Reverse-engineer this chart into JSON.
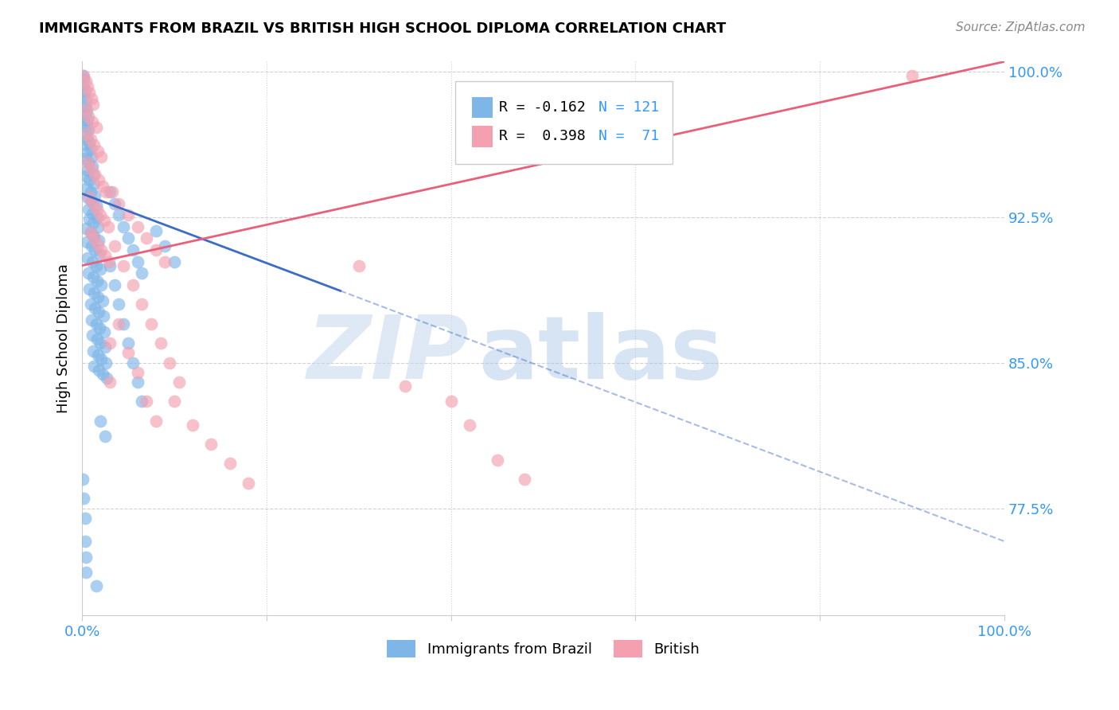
{
  "title": "IMMIGRANTS FROM BRAZIL VS BRITISH HIGH SCHOOL DIPLOMA CORRELATION CHART",
  "source": "Source: ZipAtlas.com",
  "ylabel": "High School Diploma",
  "watermark_zip": "ZIP",
  "watermark_atlas": "atlas",
  "xlim": [
    0.0,
    1.0
  ],
  "ylim": [
    0.72,
    1.005
  ],
  "yticks": [
    0.775,
    0.85,
    0.925,
    1.0
  ],
  "ytick_labels": [
    "77.5%",
    "85.0%",
    "92.5%",
    "100.0%"
  ],
  "xticks": [
    0.0,
    0.2,
    0.4,
    0.6,
    0.8,
    1.0
  ],
  "xtick_labels": [
    "0.0%",
    "",
    "",
    "",
    "",
    "100.0%"
  ],
  "legend_blue_label": "Immigrants from Brazil",
  "legend_pink_label": "British",
  "legend_R_blue": "R = -0.162",
  "legend_N_blue": "N = 121",
  "legend_R_pink": "R =  0.398",
  "legend_N_pink": "N =  71",
  "blue_color": "#7EB6E8",
  "pink_color": "#F4A0B0",
  "blue_line_color": "#3A6CC8",
  "pink_line_color": "#E8607A",
  "blue_scatter": [
    [
      0.001,
      0.998
    ],
    [
      0.002,
      0.996
    ],
    [
      0.001,
      0.993
    ],
    [
      0.003,
      0.99
    ],
    [
      0.002,
      0.988
    ],
    [
      0.004,
      0.985
    ],
    [
      0.003,
      0.982
    ],
    [
      0.005,
      0.98
    ],
    [
      0.004,
      0.978
    ],
    [
      0.006,
      0.975
    ],
    [
      0.002,
      0.975
    ],
    [
      0.005,
      0.972
    ],
    [
      0.007,
      0.97
    ],
    [
      0.003,
      0.968
    ],
    [
      0.006,
      0.965
    ],
    [
      0.008,
      0.963
    ],
    [
      0.004,
      0.962
    ],
    [
      0.009,
      0.96
    ],
    [
      0.005,
      0.958
    ],
    [
      0.01,
      0.956
    ],
    [
      0.003,
      0.955
    ],
    [
      0.007,
      0.953
    ],
    [
      0.011,
      0.951
    ],
    [
      0.006,
      0.949
    ],
    [
      0.012,
      0.947
    ],
    [
      0.004,
      0.946
    ],
    [
      0.008,
      0.944
    ],
    [
      0.013,
      0.942
    ],
    [
      0.005,
      0.94
    ],
    [
      0.009,
      0.938
    ],
    [
      0.014,
      0.936
    ],
    [
      0.006,
      0.935
    ],
    [
      0.01,
      0.933
    ],
    [
      0.015,
      0.931
    ],
    [
      0.007,
      0.929
    ],
    [
      0.011,
      0.927
    ],
    [
      0.016,
      0.925
    ],
    [
      0.008,
      0.924
    ],
    [
      0.012,
      0.922
    ],
    [
      0.017,
      0.92
    ],
    [
      0.004,
      0.919
    ],
    [
      0.009,
      0.917
    ],
    [
      0.013,
      0.915
    ],
    [
      0.018,
      0.913
    ],
    [
      0.005,
      0.912
    ],
    [
      0.01,
      0.91
    ],
    [
      0.014,
      0.908
    ],
    [
      0.019,
      0.906
    ],
    [
      0.006,
      0.904
    ],
    [
      0.011,
      0.902
    ],
    [
      0.015,
      0.9
    ],
    [
      0.02,
      0.898
    ],
    [
      0.007,
      0.896
    ],
    [
      0.012,
      0.894
    ],
    [
      0.016,
      0.892
    ],
    [
      0.021,
      0.89
    ],
    [
      0.008,
      0.888
    ],
    [
      0.013,
      0.886
    ],
    [
      0.017,
      0.884
    ],
    [
      0.022,
      0.882
    ],
    [
      0.009,
      0.88
    ],
    [
      0.014,
      0.878
    ],
    [
      0.018,
      0.876
    ],
    [
      0.023,
      0.874
    ],
    [
      0.01,
      0.872
    ],
    [
      0.015,
      0.87
    ],
    [
      0.019,
      0.868
    ],
    [
      0.024,
      0.866
    ],
    [
      0.011,
      0.864
    ],
    [
      0.016,
      0.862
    ],
    [
      0.02,
      0.86
    ],
    [
      0.025,
      0.858
    ],
    [
      0.012,
      0.856
    ],
    [
      0.017,
      0.854
    ],
    [
      0.021,
      0.852
    ],
    [
      0.026,
      0.85
    ],
    [
      0.013,
      0.848
    ],
    [
      0.018,
      0.846
    ],
    [
      0.022,
      0.844
    ],
    [
      0.027,
      0.842
    ],
    [
      0.03,
      0.938
    ],
    [
      0.035,
      0.932
    ],
    [
      0.04,
      0.926
    ],
    [
      0.045,
      0.92
    ],
    [
      0.05,
      0.914
    ],
    [
      0.055,
      0.908
    ],
    [
      0.06,
      0.902
    ],
    [
      0.065,
      0.896
    ],
    [
      0.03,
      0.9
    ],
    [
      0.035,
      0.89
    ],
    [
      0.04,
      0.88
    ],
    [
      0.045,
      0.87
    ],
    [
      0.05,
      0.86
    ],
    [
      0.055,
      0.85
    ],
    [
      0.06,
      0.84
    ],
    [
      0.065,
      0.83
    ],
    [
      0.08,
      0.918
    ],
    [
      0.09,
      0.91
    ],
    [
      0.1,
      0.902
    ],
    [
      0.001,
      0.79
    ],
    [
      0.002,
      0.78
    ],
    [
      0.003,
      0.77
    ],
    [
      0.003,
      0.758
    ],
    [
      0.004,
      0.75
    ],
    [
      0.004,
      0.742
    ],
    [
      0.015,
      0.735
    ],
    [
      0.02,
      0.82
    ],
    [
      0.025,
      0.812
    ]
  ],
  "pink_scatter": [
    [
      0.002,
      0.998
    ],
    [
      0.004,
      0.995
    ],
    [
      0.006,
      0.992
    ],
    [
      0.008,
      0.989
    ],
    [
      0.01,
      0.986
    ],
    [
      0.012,
      0.983
    ],
    [
      0.003,
      0.98
    ],
    [
      0.007,
      0.977
    ],
    [
      0.011,
      0.974
    ],
    [
      0.015,
      0.971
    ],
    [
      0.005,
      0.968
    ],
    [
      0.009,
      0.965
    ],
    [
      0.013,
      0.962
    ],
    [
      0.017,
      0.959
    ],
    [
      0.021,
      0.956
    ],
    [
      0.006,
      0.953
    ],
    [
      0.01,
      0.95
    ],
    [
      0.014,
      0.947
    ],
    [
      0.018,
      0.944
    ],
    [
      0.022,
      0.941
    ],
    [
      0.026,
      0.938
    ],
    [
      0.008,
      0.935
    ],
    [
      0.012,
      0.932
    ],
    [
      0.016,
      0.929
    ],
    [
      0.02,
      0.926
    ],
    [
      0.024,
      0.923
    ],
    [
      0.028,
      0.92
    ],
    [
      0.009,
      0.917
    ],
    [
      0.013,
      0.914
    ],
    [
      0.017,
      0.911
    ],
    [
      0.021,
      0.908
    ],
    [
      0.025,
      0.905
    ],
    [
      0.029,
      0.902
    ],
    [
      0.033,
      0.938
    ],
    [
      0.04,
      0.932
    ],
    [
      0.05,
      0.926
    ],
    [
      0.06,
      0.92
    ],
    [
      0.07,
      0.914
    ],
    [
      0.08,
      0.908
    ],
    [
      0.09,
      0.902
    ],
    [
      0.035,
      0.91
    ],
    [
      0.045,
      0.9
    ],
    [
      0.055,
      0.89
    ],
    [
      0.065,
      0.88
    ],
    [
      0.075,
      0.87
    ],
    [
      0.085,
      0.86
    ],
    [
      0.095,
      0.85
    ],
    [
      0.105,
      0.84
    ],
    [
      0.04,
      0.87
    ],
    [
      0.05,
      0.855
    ],
    [
      0.06,
      0.845
    ],
    [
      0.3,
      0.9
    ],
    [
      0.35,
      0.838
    ],
    [
      0.4,
      0.83
    ],
    [
      0.42,
      0.818
    ],
    [
      0.45,
      0.8
    ],
    [
      0.48,
      0.79
    ],
    [
      0.9,
      0.998
    ],
    [
      0.1,
      0.83
    ],
    [
      0.12,
      0.818
    ],
    [
      0.14,
      0.808
    ],
    [
      0.16,
      0.798
    ],
    [
      0.18,
      0.788
    ],
    [
      0.07,
      0.83
    ],
    [
      0.08,
      0.82
    ],
    [
      0.03,
      0.86
    ],
    [
      0.03,
      0.84
    ]
  ],
  "blue_trend_solid": {
    "x_start": 0.0,
    "y_start": 0.937,
    "x_end": 0.28,
    "y_end": 0.887
  },
  "blue_trend_dashed": {
    "x_start": 0.28,
    "y_start": 0.887,
    "x_end": 1.0,
    "y_end": 0.758
  },
  "pink_trend": {
    "x_start": 0.0,
    "y_start": 0.9,
    "x_end": 1.0,
    "y_end": 1.005
  }
}
